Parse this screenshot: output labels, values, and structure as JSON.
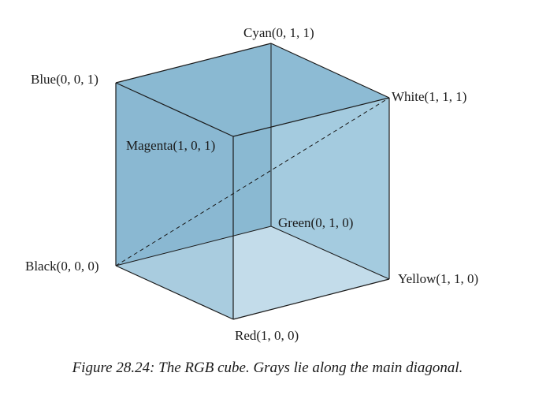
{
  "figure": {
    "caption": "Figure 28.24: The RGB cube. Grays lie along the main diagonal."
  },
  "vertices": {
    "cyan": "Cyan(0, 1, 1)",
    "blue": "Blue(0, 0, 1)",
    "white": "White(1, 1, 1)",
    "magenta": "Magenta(1, 0, 1)",
    "green": "Green(0, 1, 0)",
    "black": "Black(0, 0, 0)",
    "yellow": "Yellow(1, 1, 0)",
    "red": "Red(1, 0, 0)"
  },
  "colors": {
    "cube_face_dark": "#8ab9d2",
    "cube_face_mid": "#a4cbdf",
    "cube_face_light": "#c3dcea",
    "edge": "#1a1a1a"
  }
}
